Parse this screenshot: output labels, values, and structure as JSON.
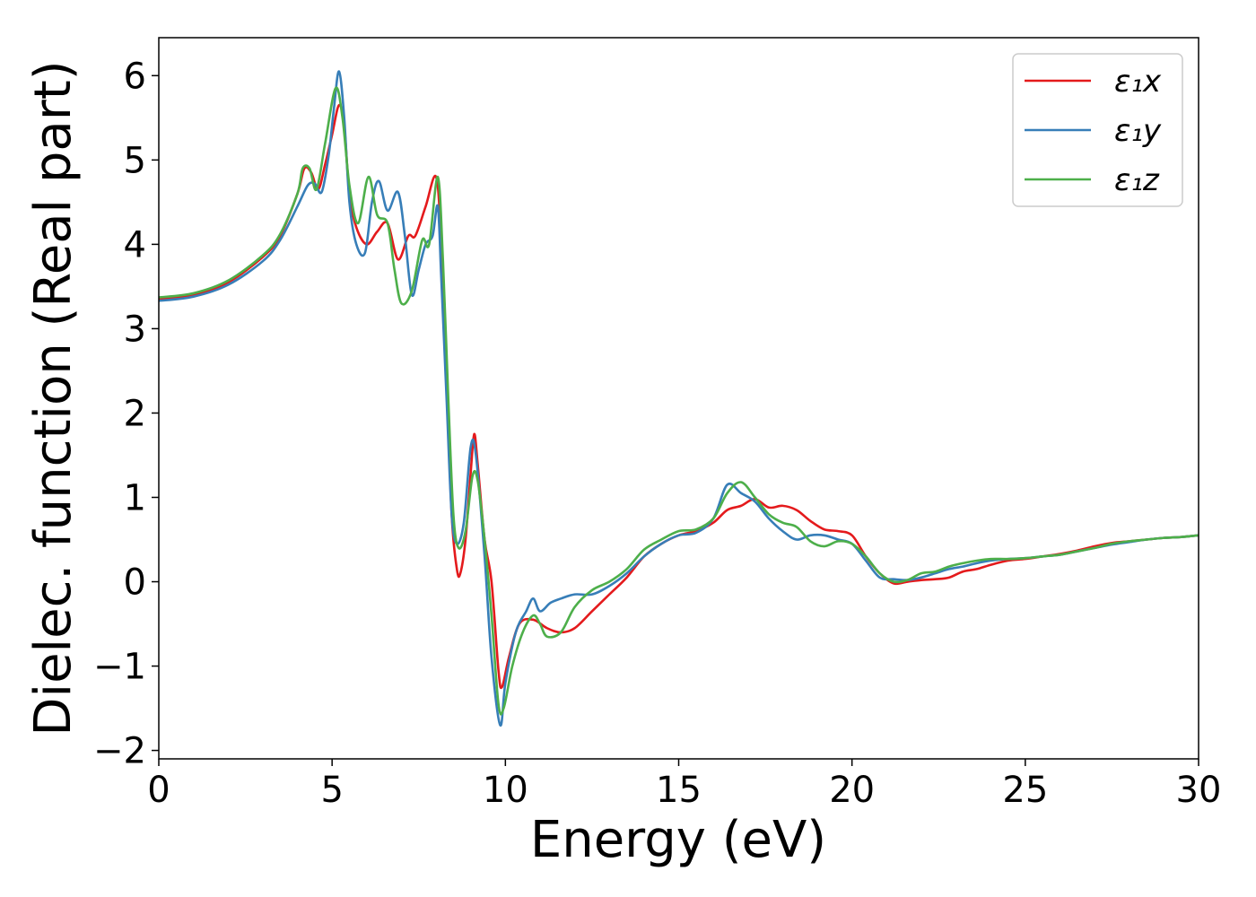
{
  "chart_data": {
    "type": "line",
    "xlabel": "Energy (eV)",
    "ylabel": "Dielec. function (Real part)",
    "xlim": [
      0,
      30
    ],
    "ylim": [
      -2.1,
      6.45
    ],
    "xticks": [
      0,
      5,
      10,
      15,
      20,
      25,
      30
    ],
    "yticks": [
      -2,
      -1,
      0,
      1,
      2,
      3,
      4,
      5,
      6
    ],
    "xtick_labels": [
      "0",
      "5",
      "10",
      "15",
      "20",
      "25",
      "30"
    ],
    "ytick_labels": [
      "−2",
      "−1",
      "0",
      "1",
      "2",
      "3",
      "4",
      "5",
      "6"
    ],
    "grid": false,
    "legend_position": "top-right",
    "series": [
      {
        "name": "ε₁x",
        "color": "#e41a1c",
        "points": [
          [
            0,
            3.35
          ],
          [
            1,
            3.4
          ],
          [
            2,
            3.55
          ],
          [
            3,
            3.85
          ],
          [
            3.5,
            4.1
          ],
          [
            4.0,
            4.6
          ],
          [
            4.2,
            4.9
          ],
          [
            4.4,
            4.85
          ],
          [
            4.6,
            4.65
          ],
          [
            4.8,
            4.95
          ],
          [
            5.0,
            5.3
          ],
          [
            5.2,
            5.65
          ],
          [
            5.35,
            5.4
          ],
          [
            5.5,
            4.6
          ],
          [
            5.7,
            4.2
          ],
          [
            6.0,
            4.0
          ],
          [
            6.3,
            4.15
          ],
          [
            6.6,
            4.25
          ],
          [
            6.9,
            3.82
          ],
          [
            7.2,
            4.1
          ],
          [
            7.4,
            4.1
          ],
          [
            7.7,
            4.45
          ],
          [
            8.0,
            4.8
          ],
          [
            8.15,
            4.0
          ],
          [
            8.3,
            2.5
          ],
          [
            8.45,
            0.8
          ],
          [
            8.6,
            0.15
          ],
          [
            8.7,
            0.1
          ],
          [
            8.85,
            0.5
          ],
          [
            9.0,
            1.3
          ],
          [
            9.1,
            1.75
          ],
          [
            9.2,
            1.4
          ],
          [
            9.4,
            0.5
          ],
          [
            9.6,
            0.0
          ],
          [
            9.8,
            -1.05
          ],
          [
            9.9,
            -1.25
          ],
          [
            10.1,
            -0.9
          ],
          [
            10.4,
            -0.5
          ],
          [
            10.8,
            -0.45
          ],
          [
            11.2,
            -0.55
          ],
          [
            11.6,
            -0.6
          ],
          [
            12.0,
            -0.55
          ],
          [
            12.5,
            -0.35
          ],
          [
            13.0,
            -0.15
          ],
          [
            13.5,
            0.05
          ],
          [
            14.0,
            0.3
          ],
          [
            14.5,
            0.45
          ],
          [
            15.0,
            0.55
          ],
          [
            15.5,
            0.6
          ],
          [
            16.0,
            0.7
          ],
          [
            16.4,
            0.85
          ],
          [
            16.8,
            0.9
          ],
          [
            17.2,
            0.98
          ],
          [
            17.6,
            0.88
          ],
          [
            18.0,
            0.9
          ],
          [
            18.4,
            0.85
          ],
          [
            18.8,
            0.72
          ],
          [
            19.2,
            0.62
          ],
          [
            19.6,
            0.6
          ],
          [
            20.0,
            0.55
          ],
          [
            20.4,
            0.3
          ],
          [
            20.8,
            0.1
          ],
          [
            21.2,
            -0.02
          ],
          [
            21.6,
            0.0
          ],
          [
            22.0,
            0.02
          ],
          [
            22.4,
            0.03
          ],
          [
            22.8,
            0.05
          ],
          [
            23.2,
            0.12
          ],
          [
            23.6,
            0.15
          ],
          [
            24.0,
            0.2
          ],
          [
            24.5,
            0.25
          ],
          [
            25.0,
            0.27
          ],
          [
            25.5,
            0.3
          ],
          [
            26.0,
            0.33
          ],
          [
            26.5,
            0.37
          ],
          [
            27.0,
            0.42
          ],
          [
            27.5,
            0.46
          ],
          [
            28.0,
            0.48
          ],
          [
            28.5,
            0.5
          ],
          [
            29.0,
            0.52
          ],
          [
            29.5,
            0.53
          ],
          [
            30.0,
            0.55
          ]
        ]
      },
      {
        "name": "ε₁y",
        "color": "#377eb8",
        "points": [
          [
            0,
            3.33
          ],
          [
            1,
            3.38
          ],
          [
            2,
            3.52
          ],
          [
            3,
            3.8
          ],
          [
            3.5,
            4.05
          ],
          [
            4.0,
            4.45
          ],
          [
            4.3,
            4.7
          ],
          [
            4.5,
            4.72
          ],
          [
            4.7,
            4.62
          ],
          [
            4.9,
            5.05
          ],
          [
            5.05,
            5.6
          ],
          [
            5.2,
            6.05
          ],
          [
            5.35,
            5.5
          ],
          [
            5.5,
            4.5
          ],
          [
            5.7,
            4.0
          ],
          [
            5.95,
            3.9
          ],
          [
            6.15,
            4.5
          ],
          [
            6.35,
            4.75
          ],
          [
            6.6,
            4.4
          ],
          [
            6.9,
            4.62
          ],
          [
            7.1,
            4.1
          ],
          [
            7.3,
            3.4
          ],
          [
            7.5,
            3.7
          ],
          [
            7.7,
            4.0
          ],
          [
            7.9,
            4.1
          ],
          [
            8.05,
            4.45
          ],
          [
            8.15,
            3.6
          ],
          [
            8.3,
            2.2
          ],
          [
            8.45,
            0.8
          ],
          [
            8.6,
            0.45
          ],
          [
            8.8,
            0.7
          ],
          [
            9.0,
            1.6
          ],
          [
            9.15,
            1.5
          ],
          [
            9.4,
            0.3
          ],
          [
            9.6,
            -0.9
          ],
          [
            9.85,
            -1.7
          ],
          [
            10.0,
            -1.2
          ],
          [
            10.3,
            -0.6
          ],
          [
            10.6,
            -0.35
          ],
          [
            10.8,
            -0.2
          ],
          [
            11.0,
            -0.35
          ],
          [
            11.3,
            -0.25
          ],
          [
            11.6,
            -0.2
          ],
          [
            12.0,
            -0.15
          ],
          [
            12.5,
            -0.15
          ],
          [
            13.0,
            -0.05
          ],
          [
            13.5,
            0.1
          ],
          [
            14.0,
            0.3
          ],
          [
            14.5,
            0.45
          ],
          [
            15.0,
            0.55
          ],
          [
            15.5,
            0.58
          ],
          [
            16.0,
            0.75
          ],
          [
            16.4,
            1.15
          ],
          [
            16.8,
            1.05
          ],
          [
            17.2,
            0.95
          ],
          [
            17.6,
            0.75
          ],
          [
            18.0,
            0.6
          ],
          [
            18.4,
            0.5
          ],
          [
            18.8,
            0.55
          ],
          [
            19.2,
            0.55
          ],
          [
            19.6,
            0.5
          ],
          [
            20.0,
            0.45
          ],
          [
            20.4,
            0.25
          ],
          [
            20.8,
            0.05
          ],
          [
            21.2,
            0.03
          ],
          [
            21.6,
            0.02
          ],
          [
            22.0,
            0.05
          ],
          [
            22.4,
            0.1
          ],
          [
            22.8,
            0.15
          ],
          [
            23.2,
            0.18
          ],
          [
            23.6,
            0.22
          ],
          [
            24.0,
            0.25
          ],
          [
            24.5,
            0.27
          ],
          [
            25.0,
            0.28
          ],
          [
            25.5,
            0.3
          ],
          [
            26.0,
            0.32
          ],
          [
            26.5,
            0.36
          ],
          [
            27.0,
            0.4
          ],
          [
            27.5,
            0.44
          ],
          [
            28.0,
            0.47
          ],
          [
            28.5,
            0.5
          ],
          [
            29.0,
            0.52
          ],
          [
            29.5,
            0.53
          ],
          [
            30.0,
            0.55
          ]
        ]
      },
      {
        "name": "ε₁z",
        "color": "#4daf4a",
        "points": [
          [
            0,
            3.37
          ],
          [
            1,
            3.42
          ],
          [
            2,
            3.57
          ],
          [
            3,
            3.87
          ],
          [
            3.5,
            4.12
          ],
          [
            4.0,
            4.6
          ],
          [
            4.15,
            4.9
          ],
          [
            4.35,
            4.9
          ],
          [
            4.55,
            4.65
          ],
          [
            4.8,
            5.2
          ],
          [
            5.1,
            5.85
          ],
          [
            5.3,
            5.5
          ],
          [
            5.5,
            4.7
          ],
          [
            5.75,
            4.25
          ],
          [
            6.05,
            4.8
          ],
          [
            6.3,
            4.35
          ],
          [
            6.6,
            4.25
          ],
          [
            6.8,
            3.7
          ],
          [
            7.0,
            3.3
          ],
          [
            7.3,
            3.45
          ],
          [
            7.6,
            4.05
          ],
          [
            7.8,
            4.0
          ],
          [
            8.05,
            4.8
          ],
          [
            8.2,
            3.8
          ],
          [
            8.35,
            2.2
          ],
          [
            8.5,
            0.8
          ],
          [
            8.65,
            0.4
          ],
          [
            8.85,
            0.6
          ],
          [
            9.05,
            1.25
          ],
          [
            9.2,
            1.2
          ],
          [
            9.4,
            0.5
          ],
          [
            9.6,
            -0.4
          ],
          [
            9.8,
            -1.45
          ],
          [
            9.95,
            -1.5
          ],
          [
            10.2,
            -1.0
          ],
          [
            10.5,
            -0.6
          ],
          [
            10.8,
            -0.4
          ],
          [
            11.0,
            -0.5
          ],
          [
            11.2,
            -0.65
          ],
          [
            11.6,
            -0.6
          ],
          [
            12.0,
            -0.3
          ],
          [
            12.5,
            -0.1
          ],
          [
            13.0,
            0.0
          ],
          [
            13.5,
            0.15
          ],
          [
            14.0,
            0.38
          ],
          [
            14.5,
            0.5
          ],
          [
            15.0,
            0.6
          ],
          [
            15.5,
            0.62
          ],
          [
            16.0,
            0.75
          ],
          [
            16.4,
            1.05
          ],
          [
            16.8,
            1.18
          ],
          [
            17.2,
            1.0
          ],
          [
            17.6,
            0.8
          ],
          [
            18.0,
            0.7
          ],
          [
            18.4,
            0.65
          ],
          [
            18.8,
            0.48
          ],
          [
            19.2,
            0.42
          ],
          [
            19.6,
            0.48
          ],
          [
            20.0,
            0.45
          ],
          [
            20.4,
            0.3
          ],
          [
            20.8,
            0.1
          ],
          [
            21.2,
            0.0
          ],
          [
            21.6,
            0.02
          ],
          [
            22.0,
            0.1
          ],
          [
            22.4,
            0.12
          ],
          [
            22.8,
            0.18
          ],
          [
            23.2,
            0.22
          ],
          [
            23.6,
            0.25
          ],
          [
            24.0,
            0.27
          ],
          [
            24.5,
            0.27
          ],
          [
            25.0,
            0.28
          ],
          [
            25.5,
            0.3
          ],
          [
            26.0,
            0.32
          ],
          [
            26.5,
            0.36
          ],
          [
            27.0,
            0.4
          ],
          [
            27.5,
            0.45
          ],
          [
            28.0,
            0.48
          ],
          [
            28.5,
            0.5
          ],
          [
            29.0,
            0.52
          ],
          [
            29.5,
            0.53
          ],
          [
            30.0,
            0.55
          ]
        ]
      }
    ]
  }
}
